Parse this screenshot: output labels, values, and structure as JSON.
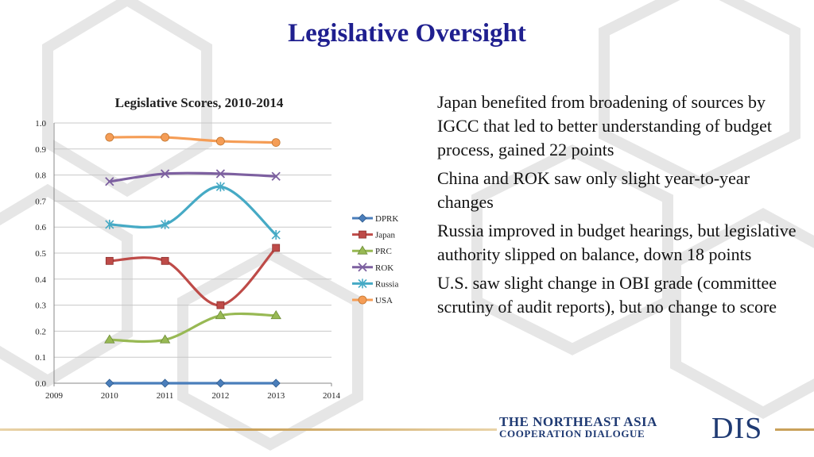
{
  "slide": {
    "title": "Legislative Oversight",
    "bullets": [
      "Japan benefited from broadening of sources by IGCC that led to better understanding of budget process, gained 22 points",
      "China and ROK saw only slight year-to-year changes",
      "Russia improved in budget hearings, but legislative authority slipped on balance, down 18 points",
      "U.S. saw slight change in OBI grade (committee scrutiny of audit reports), but no change to score"
    ]
  },
  "branding": {
    "line1": "THE NORTHEAST ASIA",
    "line2": "COOPERATION DIALOGUE",
    "mark": "DIS"
  },
  "colors": {
    "title": "#1f1f8f",
    "brand": "#1f3a73",
    "footer_line": "#c9a15a"
  },
  "chart_data": {
    "type": "line",
    "title": "Legislative Scores, 2010-2014",
    "xlabel": "",
    "ylabel": "",
    "x_ticks": [
      2009,
      2010,
      2011,
      2012,
      2013,
      2014
    ],
    "xlim": [
      2009,
      2014
    ],
    "y_ticks": [
      "0.0",
      "0.1",
      "0.2",
      "0.3",
      "0.4",
      "0.5",
      "0.6",
      "0.7",
      "0.8",
      "0.9",
      "1.0"
    ],
    "ylim": [
      0,
      1
    ],
    "grid": "horizontal",
    "legend_position": "right",
    "smooth": true,
    "x": [
      2010,
      2011,
      2012,
      2013
    ],
    "series": [
      {
        "name": "DPRK",
        "values": [
          0.0,
          0.0,
          0.0,
          0.0
        ],
        "color": "#4a7ebb",
        "marker": "diamond"
      },
      {
        "name": "Japan",
        "values": [
          0.47,
          0.47,
          0.3,
          0.52
        ],
        "color": "#be4b48",
        "marker": "square"
      },
      {
        "name": "PRC",
        "values": [
          0.167,
          0.167,
          0.26,
          0.26
        ],
        "color": "#98b954",
        "marker": "triangle"
      },
      {
        "name": "ROK",
        "values": [
          0.775,
          0.805,
          0.805,
          0.795
        ],
        "color": "#7d60a0",
        "marker": "x"
      },
      {
        "name": "Russia",
        "values": [
          0.61,
          0.61,
          0.755,
          0.57
        ],
        "color": "#46aac5",
        "marker": "star"
      },
      {
        "name": "USA",
        "values": [
          0.945,
          0.945,
          0.93,
          0.925
        ],
        "color": "#f59d56",
        "marker": "circle"
      }
    ]
  }
}
